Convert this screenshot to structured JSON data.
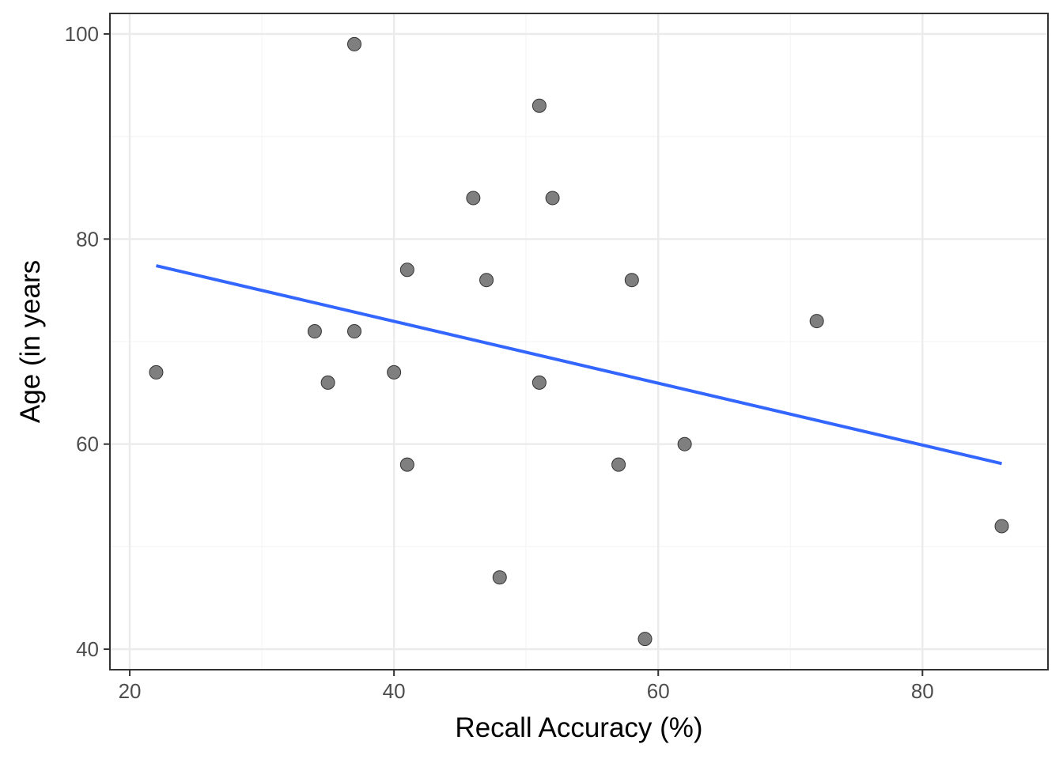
{
  "chart_data": {
    "type": "scatter",
    "title": "",
    "xlabel": "Recall Accuracy (%)",
    "ylabel": "Age (in years",
    "xlim": [
      18.5,
      89.5
    ],
    "ylim": [
      38,
      102
    ],
    "x_ticks": [
      20,
      40,
      60,
      80
    ],
    "y_ticks": [
      40,
      60,
      80,
      100
    ],
    "x_tick_labels": [
      "20",
      "40",
      "60",
      "80"
    ],
    "y_tick_labels": [
      "40",
      "60",
      "80",
      "100"
    ],
    "grid": true,
    "legend": "none",
    "points": [
      {
        "x": 22,
        "y": 67
      },
      {
        "x": 34,
        "y": 71
      },
      {
        "x": 35,
        "y": 66
      },
      {
        "x": 37,
        "y": 99
      },
      {
        "x": 37,
        "y": 71
      },
      {
        "x": 40,
        "y": 67
      },
      {
        "x": 41,
        "y": 77
      },
      {
        "x": 41,
        "y": 58
      },
      {
        "x": 46,
        "y": 84
      },
      {
        "x": 47,
        "y": 76
      },
      {
        "x": 48,
        "y": 47
      },
      {
        "x": 51,
        "y": 93
      },
      {
        "x": 51,
        "y": 66
      },
      {
        "x": 52,
        "y": 84
      },
      {
        "x": 57,
        "y": 58
      },
      {
        "x": 58,
        "y": 76
      },
      {
        "x": 59,
        "y": 41
      },
      {
        "x": 62,
        "y": 60
      },
      {
        "x": 72,
        "y": 72
      },
      {
        "x": 86,
        "y": 52
      }
    ],
    "trend_line": {
      "x": [
        22,
        86
      ],
      "y": [
        77.4,
        58.1
      ]
    },
    "colors": {
      "point_fill": "#7f7f7f",
      "point_stroke": "#333333",
      "trend_line": "#3366ff",
      "grid_major": "#ebebeb",
      "grid_minor": "#f5f5f5",
      "panel_border": "#333333"
    }
  }
}
